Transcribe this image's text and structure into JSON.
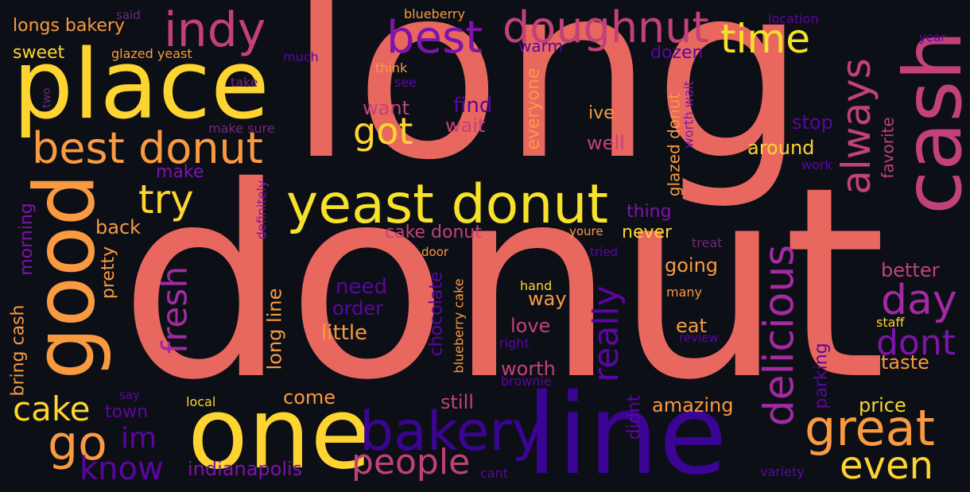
{
  "background": "#0d0f16",
  "palette": {
    "salmon": "#e8685f",
    "yellow": "#f6e229",
    "gold": "#fed530",
    "orange": "#f99a41",
    "tan": "#f3a35a",
    "pink": "#c2417a",
    "magenta": "#a32aa2",
    "purple": "#7e14aa",
    "violet": "#5b06a2",
    "indigo": "#3a0494",
    "dim": "#72277d"
  },
  "words": [
    {
      "id": "donut",
      "text": "donut",
      "color": "salmon"
    },
    {
      "id": "long",
      "text": "long",
      "color": "salmon"
    },
    {
      "id": "place",
      "text": "place",
      "color": "gold"
    },
    {
      "id": "line",
      "text": "line",
      "color": "indigo"
    },
    {
      "id": "good",
      "text": "good",
      "color": "orange"
    },
    {
      "id": "one",
      "text": "one",
      "color": "gold"
    },
    {
      "id": "cash",
      "text": "cash",
      "color": "pink"
    },
    {
      "id": "yeast-donut",
      "text": "yeast donut",
      "color": "yellow"
    },
    {
      "id": "best-donut",
      "text": "best donut",
      "color": "orange"
    },
    {
      "id": "bakery",
      "text": "bakery",
      "color": "indigo"
    },
    {
      "id": "great",
      "text": "great",
      "color": "orange"
    },
    {
      "id": "doughnut",
      "text": "doughnut",
      "color": "pink"
    },
    {
      "id": "indy",
      "text": "indy",
      "color": "pink"
    },
    {
      "id": "best",
      "text": "best",
      "color": "purple"
    },
    {
      "id": "time",
      "text": "time",
      "color": "yellow"
    },
    {
      "id": "delicious",
      "text": "delicious",
      "color": "magenta"
    },
    {
      "id": "always",
      "text": "always",
      "color": "pink"
    },
    {
      "id": "try",
      "text": "try",
      "color": "gold"
    },
    {
      "id": "go",
      "text": "go",
      "color": "orange"
    },
    {
      "id": "cake",
      "text": "cake",
      "color": "gold"
    },
    {
      "id": "people",
      "text": "people",
      "color": "pink"
    },
    {
      "id": "even",
      "text": "even",
      "color": "gold"
    },
    {
      "id": "day",
      "text": "day",
      "color": "magenta"
    },
    {
      "id": "dont",
      "text": "dont",
      "color": "purple"
    },
    {
      "id": "fresh",
      "text": "fresh",
      "color": "magenta"
    },
    {
      "id": "really",
      "text": "really",
      "color": "violet"
    },
    {
      "id": "got",
      "text": "got",
      "color": "gold"
    },
    {
      "id": "know",
      "text": "know",
      "color": "violet"
    },
    {
      "id": "im",
      "text": "im",
      "color": "violet"
    },
    {
      "id": "longs-bakery",
      "text": "longs bakery",
      "color": "orange"
    },
    {
      "id": "sweet",
      "text": "sweet",
      "color": "gold"
    },
    {
      "id": "glazed-yeast",
      "text": "glazed yeast",
      "color": "orange"
    },
    {
      "id": "blueberry",
      "text": "blueberry",
      "color": "orange"
    },
    {
      "id": "said",
      "text": "said",
      "color": "dim"
    },
    {
      "id": "much",
      "text": "much",
      "color": "violet"
    },
    {
      "id": "two",
      "text": "two",
      "color": "dim"
    },
    {
      "id": "take",
      "text": "take",
      "color": "dim"
    },
    {
      "id": "think",
      "text": "think",
      "color": "orange"
    },
    {
      "id": "see",
      "text": "see",
      "color": "violet"
    },
    {
      "id": "warm",
      "text": "warm",
      "color": "violet"
    },
    {
      "id": "dozen",
      "text": "dozen",
      "color": "violet"
    },
    {
      "id": "location",
      "text": "location",
      "color": "violet"
    },
    {
      "id": "year",
      "text": "year",
      "color": "violet"
    },
    {
      "id": "want",
      "text": "want",
      "color": "pink"
    },
    {
      "id": "find",
      "text": "find",
      "color": "violet"
    },
    {
      "id": "wait",
      "text": "wait",
      "color": "pink"
    },
    {
      "id": "everyone",
      "text": "everyone",
      "color": "orange"
    },
    {
      "id": "ive",
      "text": "ive",
      "color": "orange"
    },
    {
      "id": "well",
      "text": "well",
      "color": "pink"
    },
    {
      "id": "glazed-donut",
      "text": "glazed donut",
      "color": "orange"
    },
    {
      "id": "worth-wait",
      "text": "worth wait",
      "color": "purple"
    },
    {
      "id": "stop",
      "text": "stop",
      "color": "violet"
    },
    {
      "id": "around",
      "text": "around",
      "color": "gold"
    },
    {
      "id": "favorite",
      "text": "favorite",
      "color": "pink"
    },
    {
      "id": "work",
      "text": "work",
      "color": "violet"
    },
    {
      "id": "make-sure",
      "text": "make sure",
      "color": "dim"
    },
    {
      "id": "make",
      "text": "make",
      "color": "purple"
    },
    {
      "id": "definitely",
      "text": "definitely",
      "color": "purple"
    },
    {
      "id": "thing",
      "text": "thing",
      "color": "purple"
    },
    {
      "id": "never",
      "text": "never",
      "color": "gold"
    },
    {
      "id": "back",
      "text": "back",
      "color": "orange"
    },
    {
      "id": "morning",
      "text": "morning",
      "color": "purple"
    },
    {
      "id": "pretty",
      "text": "pretty",
      "color": "orange"
    },
    {
      "id": "bring-cash",
      "text": "bring cash",
      "color": "orange"
    },
    {
      "id": "cake-donut",
      "text": "cake donut",
      "color": "pink"
    },
    {
      "id": "youre",
      "text": "youre",
      "color": "orange"
    },
    {
      "id": "door",
      "text": "door",
      "color": "orange"
    },
    {
      "id": "tried",
      "text": "tried",
      "color": "violet"
    },
    {
      "id": "treat",
      "text": "treat",
      "color": "dim"
    },
    {
      "id": "going",
      "text": "going",
      "color": "orange"
    },
    {
      "id": "better",
      "text": "better",
      "color": "pink"
    },
    {
      "id": "long-line",
      "text": "long line",
      "color": "orange"
    },
    {
      "id": "need",
      "text": "need",
      "color": "violet"
    },
    {
      "id": "order",
      "text": "order",
      "color": "violet"
    },
    {
      "id": "chocolate",
      "text": "chocolate",
      "color": "violet"
    },
    {
      "id": "blueberry-cake",
      "text": "blueberry cake",
      "color": "orange"
    },
    {
      "id": "hand",
      "text": "hand",
      "color": "gold"
    },
    {
      "id": "many",
      "text": "many",
      "color": "orange"
    },
    {
      "id": "way",
      "text": "way",
      "color": "orange"
    },
    {
      "id": "little",
      "text": "little",
      "color": "orange"
    },
    {
      "id": "love",
      "text": "love",
      "color": "pink"
    },
    {
      "id": "right",
      "text": "right",
      "color": "violet"
    },
    {
      "id": "eat",
      "text": "eat",
      "color": "orange"
    },
    {
      "id": "review",
      "text": "review",
      "color": "violet"
    },
    {
      "id": "staff",
      "text": "staff",
      "color": "gold"
    },
    {
      "id": "parking",
      "text": "parking",
      "color": "violet"
    },
    {
      "id": "taste",
      "text": "taste",
      "color": "orange"
    },
    {
      "id": "worth",
      "text": "worth",
      "color": "pink"
    },
    {
      "id": "brownie",
      "text": "brownie",
      "color": "violet"
    },
    {
      "id": "didnt",
      "text": "didnt",
      "color": "violet"
    },
    {
      "id": "amazing",
      "text": "amazing",
      "color": "orange"
    },
    {
      "id": "price",
      "text": "price",
      "color": "gold"
    },
    {
      "id": "say",
      "text": "say",
      "color": "violet"
    },
    {
      "id": "local",
      "text": "local",
      "color": "gold"
    },
    {
      "id": "town",
      "text": "town",
      "color": "violet"
    },
    {
      "id": "come",
      "text": "come",
      "color": "orange"
    },
    {
      "id": "still",
      "text": "still",
      "color": "pink"
    },
    {
      "id": "indianapolis",
      "text": "indianapolis",
      "color": "purple"
    },
    {
      "id": "cant",
      "text": "cant",
      "color": "violet"
    },
    {
      "id": "variety",
      "text": "variety",
      "color": "violet"
    }
  ]
}
